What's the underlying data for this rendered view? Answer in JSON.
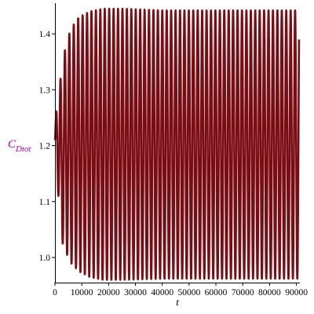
{
  "chart_data": {
    "type": "line",
    "title": "",
    "xlabel": "t",
    "ylabel_main": "C",
    "ylabel_sub": "Dtot",
    "xlim": [
      0,
      91000
    ],
    "ylim": [
      0.955,
      1.455
    ],
    "x_ticks": [
      0,
      10000,
      20000,
      30000,
      40000,
      50000,
      60000,
      70000,
      80000,
      90000
    ],
    "x_tick_labels": [
      "0",
      "10000",
      "20000",
      "30000",
      "40000",
      "50000",
      "60000",
      "70000",
      "80000",
      "90000"
    ],
    "y_ticks": [
      1.0,
      1.1,
      1.2,
      1.3,
      1.4
    ],
    "y_tick_labels": [
      "1.0",
      "1.1",
      "1.2",
      "1.3",
      "1.4"
    ],
    "grid": false,
    "legend": "none",
    "series": [
      {
        "color": "#7a0d14",
        "start_value": 1.21,
        "end_value": 1.39,
        "period": 1650,
        "x_end": 91000,
        "envelope": [
          {
            "t": 0,
            "max": 1.22,
            "min": 1.2
          },
          {
            "t": 800,
            "max": 1.29,
            "min": 1.14
          },
          {
            "t": 2500,
            "max": 1.33,
            "min": 1.03
          },
          {
            "t": 4000,
            "max": 1.38,
            "min": 1.01
          },
          {
            "t": 6000,
            "max": 1.41,
            "min": 0.99
          },
          {
            "t": 9000,
            "max": 1.43,
            "min": 0.975
          },
          {
            "t": 13000,
            "max": 1.44,
            "min": 0.965
          },
          {
            "t": 18000,
            "max": 1.445,
            "min": 0.96
          },
          {
            "t": 25000,
            "max": 1.445,
            "min": 0.96
          },
          {
            "t": 40000,
            "max": 1.442,
            "min": 0.962
          },
          {
            "t": 60000,
            "max": 1.442,
            "min": 0.962
          },
          {
            "t": 91000,
            "max": 1.442,
            "min": 0.962
          }
        ]
      }
    ]
  },
  "colors": {
    "line": "#7a0d14",
    "ylabel": "#b400b4",
    "axis": "#000000"
  }
}
